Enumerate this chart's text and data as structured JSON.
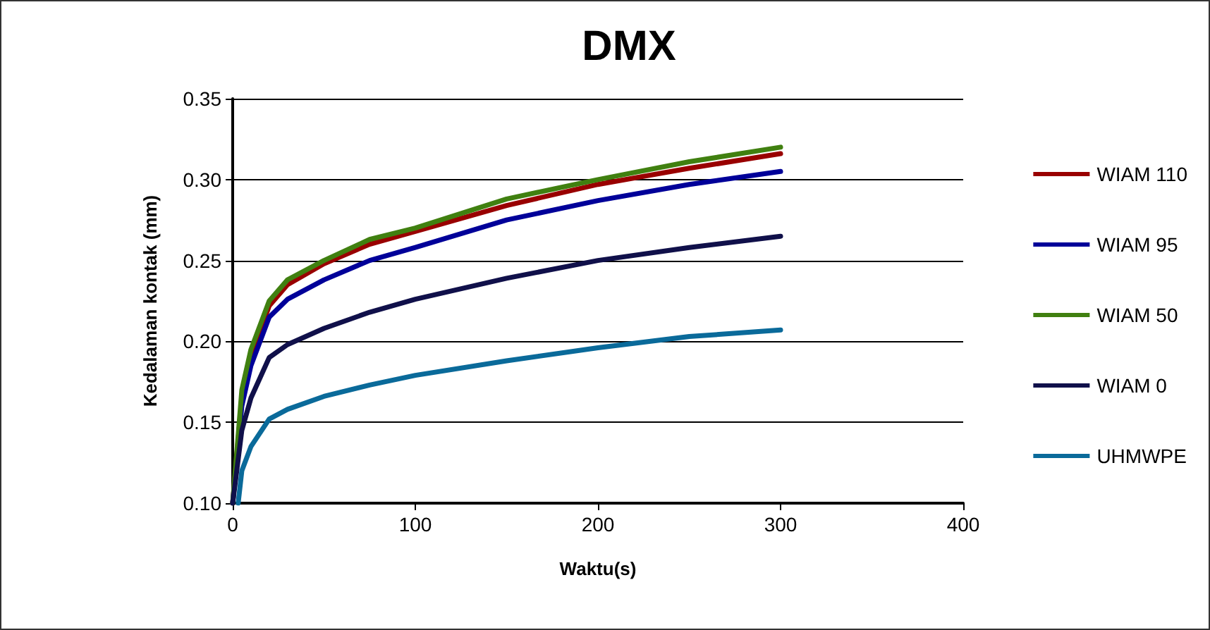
{
  "chart_data": {
    "type": "line",
    "title": "DMX",
    "xlabel": "Waktu(s)",
    "ylabel": "Kedalaman kontak (mm)",
    "x": [
      0,
      5,
      10,
      20,
      30,
      50,
      75,
      100,
      150,
      200,
      250,
      300
    ],
    "series": [
      {
        "name": "WIAM 110",
        "color": "#990000",
        "values": [
          0.1,
          0.165,
          0.19,
          0.222,
          0.235,
          0.248,
          0.26,
          0.268,
          0.284,
          0.297,
          0.307,
          0.316
        ]
      },
      {
        "name": "WIAM 95",
        "color": "#000099",
        "values": [
          0.1,
          0.16,
          0.185,
          0.215,
          0.226,
          0.238,
          0.25,
          0.258,
          0.275,
          0.287,
          0.297,
          0.305
        ]
      },
      {
        "name": "WIAM 50",
        "color": "#408010",
        "values": [
          0.1,
          0.17,
          0.195,
          0.225,
          0.238,
          0.25,
          0.263,
          0.27,
          0.288,
          0.3,
          0.311,
          0.32
        ]
      },
      {
        "name": "WIAM 0",
        "color": "#10104a",
        "values": [
          0.1,
          0.145,
          0.165,
          0.19,
          0.198,
          0.208,
          0.218,
          0.226,
          0.239,
          0.25,
          0.258,
          0.265
        ]
      },
      {
        "name": "UHMWPE",
        "color": "#0a6a9a",
        "x": [
          3,
          5,
          10,
          20,
          30,
          50,
          75,
          100,
          150,
          200,
          250,
          300
        ],
        "values": [
          0.1,
          0.12,
          0.135,
          0.152,
          0.158,
          0.166,
          0.173,
          0.179,
          0.188,
          0.196,
          0.203,
          0.207
        ]
      }
    ],
    "xlim": [
      0,
      400
    ],
    "xticks": [
      0,
      100,
      200,
      300,
      400
    ],
    "ylim": [
      0.1,
      0.35
    ],
    "yticks": [
      {
        "value": 0.1,
        "label": "0.10"
      },
      {
        "value": 0.15,
        "label": "0.15"
      },
      {
        "value": 0.2,
        "label": "0.20"
      },
      {
        "value": 0.25,
        "label": "0.25"
      },
      {
        "value": 0.3,
        "label": "0.30"
      },
      {
        "value": 0.35,
        "label": "0.35"
      }
    ],
    "grid": "y",
    "legend": "right",
    "marker": "none",
    "line_style": "solid"
  }
}
